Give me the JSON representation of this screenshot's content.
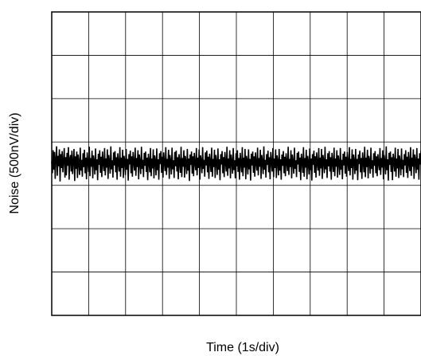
{
  "chart_data": {
    "type": "line",
    "xlabel": "Time (1s/div)",
    "ylabel": "Noise (500nV/div)",
    "x_divisions": 10,
    "y_divisions": 7,
    "xlim": [
      0,
      10
    ],
    "ylim": [
      -3.5,
      3.5
    ],
    "x_unit": "s",
    "y_unit": "500nV",
    "grid": true,
    "legend": "none",
    "series": [
      {
        "trace_color": "#000000",
        "x_step": 0.02,
        "values": [
          0.05,
          -0.22,
          0.31,
          -0.14,
          0.27,
          -0.35,
          0.12,
          0.4,
          -0.28,
          0.18,
          -0.06,
          0.33,
          -0.41,
          0.22,
          -0.1,
          0.29,
          -0.2,
          0.08,
          0.36,
          -0.32,
          0.15,
          -0.27,
          0.25,
          -0.05,
          0.38,
          -0.37,
          0.11,
          0.2,
          -0.18,
          0.3,
          -0.24,
          0.06,
          0.34,
          -0.4,
          0.17,
          -0.12,
          0.28,
          -0.33,
          0.21,
          0.02,
          -0.26,
          0.37,
          -0.16,
          0.09,
          -0.3,
          0.24,
          -0.08,
          0.32,
          -0.22,
          0.14,
          -0.36,
          0.26,
          0.04,
          -0.19,
          0.39,
          -0.29,
          0.13,
          -0.07,
          0.3,
          -0.34,
          0.19,
          0.07,
          -0.25,
          0.35,
          -0.15,
          0.1,
          -0.38,
          0.23,
          -0.03,
          0.31,
          -0.21,
          0.16,
          -0.31,
          0.28,
          0.01,
          -0.17,
          0.36,
          -0.27,
          0.12,
          -0.09,
          0.33,
          -0.35,
          0.2,
          0.05,
          -0.23,
          0.4,
          -0.13,
          0.08,
          -0.32,
          0.26,
          -0.04,
          0.29,
          -0.2,
          0.15,
          -0.37,
          0.24,
          0.03,
          -0.18,
          0.38,
          -0.3,
          0.14,
          -0.1,
          0.32,
          -0.33,
          0.18,
          0.06,
          -0.26,
          0.34,
          -0.14,
          0.11,
          -0.39,
          0.22,
          -0.02,
          0.3,
          -0.22,
          0.17,
          -0.3,
          0.27,
          0.02,
          -0.16,
          0.37,
          -0.28,
          0.13,
          -0.08,
          0.31,
          -0.36,
          0.21,
          0.04,
          -0.24,
          0.39,
          -0.12,
          0.09,
          -0.31,
          0.25,
          -0.05,
          0.28,
          -0.19,
          0.14,
          -0.38,
          0.23,
          0.05,
          -0.2,
          0.36,
          -0.29,
          0.12,
          -0.11,
          0.33,
          -0.34,
          0.19,
          0.07,
          -0.27,
          0.35,
          -0.15,
          0.1,
          -0.37,
          0.24,
          -0.01,
          0.29,
          -0.21,
          0.16,
          -0.32,
          0.26,
          0.03,
          -0.17,
          0.38,
          -0.26,
          0.11,
          -0.09,
          0.32,
          -0.35,
          0.2,
          0.06,
          -0.25,
          0.37,
          -0.13,
          0.08,
          -0.33,
          0.27,
          -0.06,
          0.3,
          -0.18,
          0.15,
          -0.36,
          0.22,
          0.04,
          -0.21,
          0.39,
          -0.31,
          0.13,
          -0.07,
          0.31,
          -0.32,
          0.18,
          0.05,
          -0.24,
          0.34,
          -0.16,
          0.12,
          -0.4,
          0.21,
          -0.03,
          0.28,
          -0.23,
          0.17,
          -0.29,
          0.25,
          0.02,
          -0.15,
          0.36,
          -0.27,
          0.14,
          -0.1,
          0.33,
          -0.37,
          0.19,
          0.07,
          -0.22,
          0.38,
          -0.12,
          0.09,
          -0.3,
          0.26,
          -0.04,
          0.3,
          -0.2,
          0.16,
          -0.35,
          0.23,
          0.05,
          -0.19,
          0.37,
          -0.3,
          0.11,
          -0.08,
          0.32,
          -0.33,
          0.2,
          0.04,
          -0.26,
          0.35,
          -0.14,
          0.1,
          -0.38,
          0.22,
          -0.02,
          0.29,
          -0.22,
          0.15,
          -0.31,
          0.27,
          0.03,
          -0.18,
          0.39,
          -0.28,
          0.12,
          -0.11,
          0.31,
          -0.34,
          0.21,
          0.06,
          -0.23,
          0.36,
          -0.15,
          0.08,
          -0.34,
          0.24,
          -0.06,
          0.31,
          -0.19,
          0.13,
          -0.37,
          0.25,
          0.01,
          -0.2,
          0.38,
          -0.29,
          0.14,
          -0.09,
          0.34,
          -0.36,
          0.18,
          0.07,
          -0.25,
          0.33,
          -0.13,
          0.11,
          -0.39,
          0.23,
          -0.04,
          0.28,
          -0.21,
          0.17,
          -0.3,
          0.26,
          0.02,
          -0.16,
          0.37,
          -0.27,
          0.13,
          -0.07,
          0.32,
          -0.35,
          0.2,
          0.05,
          -0.24,
          0.4,
          -0.14,
          0.09,
          -0.32,
          0.22,
          -0.03,
          0.3,
          -0.2,
          0.15,
          -0.36,
          0.27,
          0.04,
          -0.18,
          0.36,
          -0.31,
          0.12,
          -0.1,
          0.33,
          -0.33,
          0.19,
          0.06,
          -0.27,
          0.34,
          -0.16,
          0.1,
          -0.37,
          0.21,
          -0.05,
          0.29,
          -0.22,
          0.16,
          -0.29,
          0.24,
          0.03,
          -0.17,
          0.39,
          -0.26,
          0.11,
          -0.08,
          0.31,
          -0.34,
          0.21,
          0.05,
          -0.23,
          0.37,
          -0.12,
          0.08,
          -0.31,
          0.25,
          -0.02,
          0.28,
          -0.19,
          0.14,
          -0.38,
          0.23,
          0.06,
          -0.21,
          0.38,
          -0.3,
          0.13,
          -0.09,
          0.32,
          -0.36,
          0.18,
          0.04,
          -0.25,
          0.35,
          -0.15,
          0.12,
          -0.39,
          0.22,
          -0.03,
          0.3,
          -0.21,
          0.17,
          -0.32,
          0.26,
          0.01,
          -0.16,
          0.36,
          -0.28,
          0.14,
          -0.11,
          0.34,
          -0.35,
          0.2,
          0.07,
          -0.22,
          0.39,
          -0.13,
          0.1,
          -0.33,
          0.24,
          -0.06,
          0.29,
          -0.18,
          0.15,
          -0.37,
          0.25,
          0.02,
          -0.19,
          0.37,
          -0.29,
          0.12,
          -0.07,
          0.31,
          -0.32,
          0.19,
          0.05,
          -0.26,
          0.36,
          -0.14,
          0.09,
          -0.36,
          0.23,
          -0.04,
          0.28,
          -0.23,
          0.16,
          -0.3,
          0.27,
          0.03,
          -0.17,
          0.38,
          -0.27,
          0.11,
          -0.1,
          0.33,
          -0.37,
          0.21,
          0.06,
          -0.24,
          0.34,
          -0.16,
          0.11,
          -0.38,
          0.21,
          -0.01,
          0.3,
          -0.2,
          0.13,
          -0.35,
          0.26,
          0.04,
          -0.2,
          0.39,
          -0.31,
          0.14,
          -0.08,
          0.32,
          -0.34,
          0.18,
          0.07,
          -0.23,
          0.37,
          -0.12,
          0.08,
          -0.32,
          0.24,
          -0.05,
          0.29,
          -0.22,
          0.17,
          -0.29,
          0.22,
          0.02,
          -0.15,
          0.36,
          -0.26,
          0.13,
          -0.09,
          0.31,
          -0.36,
          0.2,
          0.05,
          -0.25,
          0.4,
          -0.15,
          0.1,
          -0.39,
          0.25,
          -0.03,
          0.28,
          -0.19,
          0.15,
          -0.38,
          0.23,
          0.06,
          -0.18,
          0.37,
          -0.3,
          0.12,
          -0.11,
          0.34,
          -0.33,
          0.19,
          0.04,
          -0.27,
          0.35,
          -0.13,
          0.09,
          -0.31,
          0.22,
          -0.04,
          0.31,
          -0.21,
          0.16,
          -0.33,
          0.27,
          0.01,
          -0.17,
          0.38,
          -0.28,
          0.14,
          -0.07,
          0.33,
          -0.35,
          0.21,
          0.07,
          -0.22,
          0.36,
          -0.14,
          0.12,
          -0.37,
          0.24,
          -0.02,
          0.3
        ]
      }
    ]
  }
}
